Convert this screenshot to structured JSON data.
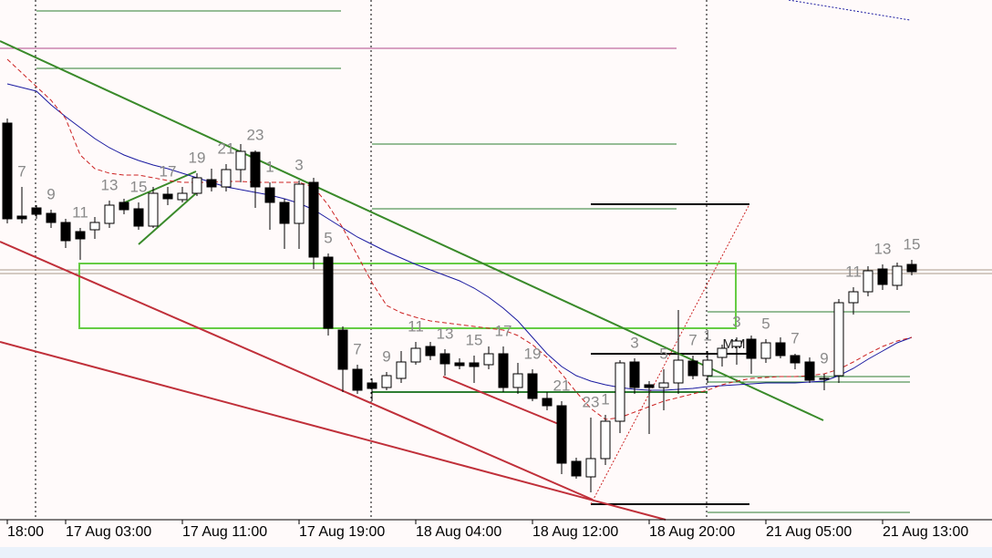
{
  "chart_data": {
    "type": "candlestick",
    "categories": [
      "18:00",
      null,
      null,
      null,
      "17 Aug 03:00",
      null,
      null,
      null,
      null,
      null,
      null,
      null,
      "17 Aug 11:00",
      null,
      null,
      null,
      null,
      null,
      null,
      null,
      "17 Aug 19:00",
      null,
      null,
      null,
      null,
      null,
      null,
      null,
      "18 Aug 04:00",
      null,
      null,
      null,
      null,
      null,
      null,
      null,
      "18 Aug 12:00",
      null,
      null,
      null,
      null,
      null,
      null,
      null,
      "18 Aug 20:00",
      null,
      null,
      null,
      null,
      null,
      null,
      null,
      "21 Aug 05:00",
      null,
      null,
      null,
      null,
      null,
      null,
      null,
      "21 Aug 13:00",
      null,
      null
    ],
    "open": [
      435,
      333,
      342,
      336,
      326,
      316,
      318,
      325,
      348,
      341,
      322,
      357,
      351,
      358,
      373,
      365,
      384,
      403,
      364,
      348,
      325,
      370,
      288,
      208,
      165,
      150,
      145,
      155,
      173,
      190,
      182,
      172,
      172,
      170,
      182,
      145,
      160,
      133,
      125,
      64,
      47,
      67,
      108,
      173,
      148,
      145,
      150,
      174,
      158,
      178,
      190,
      198,
      177,
      194,
      180,
      173,
      154,
      158,
      238,
      250,
      275,
      257,
      280
    ],
    "high": [
      440,
      365,
      345,
      340,
      330,
      320,
      332,
      350,
      352,
      348,
      365,
      365,
      365,
      380,
      385,
      390,
      412,
      405,
      370,
      352,
      372,
      375,
      292,
      212,
      170,
      155,
      162,
      185,
      195,
      195,
      187,
      177,
      180,
      190,
      190,
      172,
      165,
      140,
      130,
      68,
      112,
      115,
      175,
      177,
      152,
      165,
      230,
      180,
      185,
      192,
      200,
      202,
      198,
      200,
      182,
      178,
      160,
      242,
      255,
      278,
      280,
      282,
      285
    ],
    "low": [
      325,
      325,
      330,
      320,
      298,
      285,
      308,
      320,
      335,
      318,
      320,
      345,
      348,
      355,
      360,
      360,
      370,
      342,
      318,
      297,
      297,
      275,
      202,
      140,
      138,
      130,
      142,
      150,
      170,
      175,
      158,
      165,
      150,
      165,
      140,
      138,
      130,
      120,
      50,
      45,
      30,
      60,
      95,
      138,
      94,
      120,
      138,
      154,
      150,
      168,
      170,
      160,
      172,
      177,
      165,
      150,
      142,
      150,
      225,
      245,
      252,
      252,
      268
    ],
    "close": [
      330,
      330,
      335,
      326,
      306,
      308,
      326,
      345,
      340,
      322,
      358,
      352,
      358,
      375,
      365,
      384,
      404,
      365,
      348,
      325,
      368,
      288,
      210,
      165,
      142,
      144,
      158,
      173,
      188,
      180,
      171,
      169,
      168,
      182,
      145,
      160,
      133,
      125,
      62,
      48,
      67,
      108,
      172,
      145,
      145,
      150,
      175,
      158,
      175,
      188,
      196,
      177,
      194,
      180,
      172,
      153,
      155,
      238,
      250,
      273,
      258,
      278,
      272
    ],
    "labels": [
      null,
      "7",
      null,
      "9",
      null,
      "11",
      null,
      "13",
      null,
      "15",
      null,
      "17",
      null,
      "19",
      null,
      "21",
      null,
      "23",
      "1",
      null,
      "3",
      null,
      "5",
      null,
      "7",
      null,
      "9",
      null,
      "11",
      null,
      "13",
      null,
      "15",
      null,
      "17",
      null,
      "19",
      null,
      "21",
      null,
      "23",
      "1",
      null,
      "3",
      null,
      "5",
      null,
      "7",
      "1",
      null,
      "3",
      null,
      "5",
      null,
      "7",
      null,
      "9",
      null,
      "11",
      null,
      "13",
      null,
      "15"
    ],
    "annotation": "MM",
    "overlays": [
      {
        "color": "#1a1aa0",
        "dash": false,
        "values": [
          478,
          474,
          470,
          455,
          442,
          430,
          418,
          408,
          400,
          394,
          389,
          385,
          380,
          375,
          370,
          365,
          362,
          359,
          356,
          352,
          347,
          340,
          330,
          320,
          310,
          302,
          294,
          287,
          280,
          274,
          268,
          262,
          254,
          244,
          232,
          218,
          200,
          182,
          168,
          158,
          152,
          148,
          145,
          143,
          142,
          142,
          143,
          144,
          146,
          147,
          148,
          149,
          150,
          150,
          150,
          151,
          152,
          158,
          166,
          176,
          185,
          194,
          200
        ]
      },
      {
        "color": "#cc2222",
        "dash": true,
        "values": [
          505,
          490,
          475,
          460,
          440,
          400,
          385,
          380,
          378,
          378,
          375,
          372,
          370,
          370,
          370,
          371,
          371,
          370,
          370,
          370,
          370,
          365,
          345,
          320,
          290,
          260,
          235,
          227,
          222,
          218,
          216,
          214,
          212,
          210,
          208,
          202,
          192,
          178,
          160,
          140,
          122,
          110,
          112,
          118,
          124,
          130,
          134,
          138,
          142,
          148,
          152,
          155,
          156,
          157,
          157,
          158,
          160,
          165,
          173,
          182,
          190,
          196,
          200
        ]
      }
    ],
    "up_color": "#ffffff",
    "down_color": "#000000",
    "label_color": "#8a8a8a",
    "ylim": [
      0,
      570
    ]
  }
}
